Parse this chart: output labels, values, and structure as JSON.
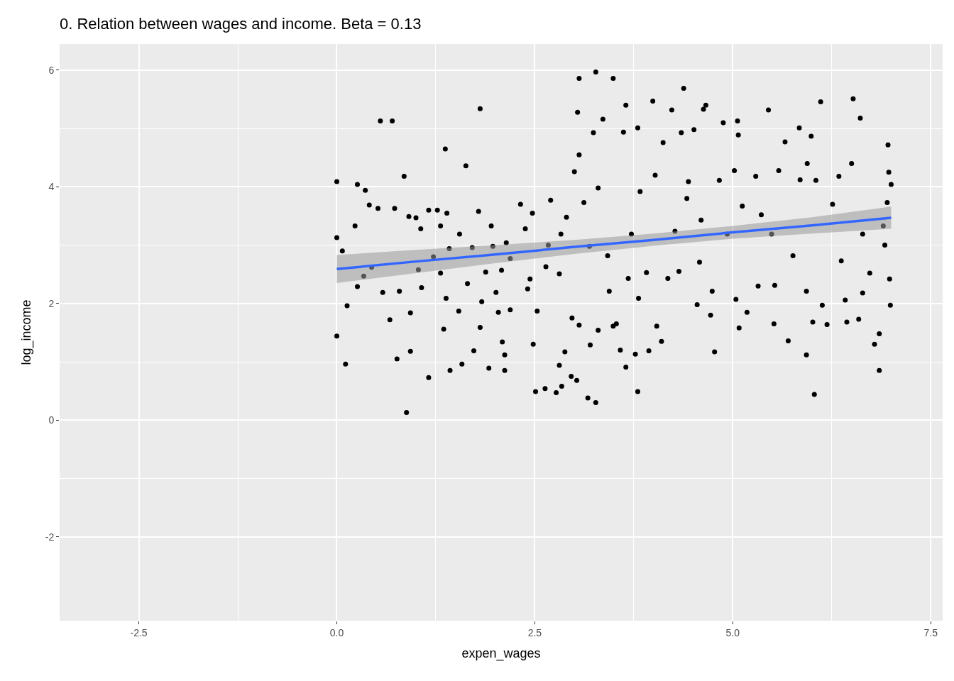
{
  "chart_data": {
    "type": "scatter",
    "title": "0. Relation between wages and income. Beta = 0.13",
    "xlabel": "expen_wages",
    "ylabel": "log_income",
    "xlim": [
      -3.5,
      7.65
    ],
    "xticks": [
      {
        "value": -2.5,
        "label": "-2.5"
      },
      {
        "value": 0,
        "label": "0.0"
      },
      {
        "value": 2.5,
        "label": "2.5"
      },
      {
        "value": 5,
        "label": "5.0"
      },
      {
        "value": 7.5,
        "label": "7.5"
      }
    ],
    "ylim": [
      -3.44,
      6.45
    ],
    "yticks": [
      -2,
      0,
      2,
      4,
      6
    ],
    "grid": true,
    "line_style": "solid",
    "series": [
      {
        "marker": "circle",
        "color": "#000000",
        "x": [
          0.0,
          0.0,
          0.0,
          0.07,
          0.11,
          0.13,
          0.26,
          0.23,
          0.26,
          0.36,
          0.34,
          0.41,
          0.44,
          0.55,
          0.52,
          0.58,
          0.7,
          0.67,
          0.73,
          0.76,
          0.79,
          0.85,
          0.88,
          0.91,
          0.93,
          0.93,
          1.0,
          1.03,
          1.06,
          1.07,
          1.16,
          1.16,
          1.22,
          1.27,
          1.31,
          1.31,
          1.35,
          1.37,
          1.38,
          1.39,
          1.43,
          1.42,
          1.54,
          1.55,
          1.58,
          1.63,
          1.65,
          1.71,
          1.73,
          1.79,
          1.81,
          1.81,
          1.83,
          1.88,
          1.92,
          1.95,
          1.97,
          2.01,
          2.04,
          2.08,
          2.09,
          2.12,
          2.12,
          2.14,
          2.19,
          2.19,
          2.32,
          2.38,
          2.41,
          2.44,
          2.47,
          2.48,
          2.51,
          2.53,
          2.63,
          2.64,
          2.67,
          2.7,
          2.77,
          2.81,
          2.81,
          2.84,
          2.88,
          2.9,
          2.96,
          2.97,
          3.03,
          3.0,
          3.04,
          3.06,
          3.06,
          3.06,
          3.12,
          3.17,
          3.2,
          3.19,
          3.24,
          3.27,
          3.27,
          3.3,
          3.3,
          3.36,
          3.42,
          3.44,
          3.49,
          3.49,
          3.53,
          3.58,
          3.62,
          3.65,
          3.65,
          3.68,
          3.77,
          3.8,
          3.8,
          3.81,
          3.83,
          3.91,
          3.94,
          3.99,
          4.02,
          4.04,
          4.1,
          4.12,
          4.18,
          4.23,
          4.27,
          4.32,
          4.35,
          4.38,
          4.42,
          4.44,
          4.51,
          4.55,
          4.58,
          4.63,
          4.66,
          4.72,
          4.74,
          4.77,
          4.83,
          4.88,
          4.93,
          5.02,
          5.06,
          5.07,
          5.04,
          5.08,
          5.12,
          5.18,
          5.29,
          5.32,
          5.36,
          5.45,
          5.52,
          5.53,
          5.58,
          5.66,
          5.7,
          5.76,
          5.84,
          5.85,
          5.93,
          5.94,
          5.99,
          6.01,
          6.03,
          6.05,
          6.11,
          6.13,
          6.19,
          6.26,
          6.34,
          6.37,
          6.42,
          6.44,
          6.5,
          6.52,
          6.59,
          6.61,
          6.64,
          6.73,
          6.79,
          6.85,
          6.85,
          6.9,
          6.92,
          6.96,
          6.97,
          6.98,
          6.99,
          7.0,
          6.95,
          5.93,
          6.64,
          5.49,
          4.6,
          3.72,
          2.83
        ],
        "values": [
          4.09,
          3.13,
          1.44,
          2.9,
          0.96,
          1.96,
          4.04,
          3.33,
          2.29,
          3.94,
          2.47,
          3.69,
          2.62,
          5.13,
          3.63,
          2.19,
          5.13,
          1.72,
          3.63,
          1.05,
          2.21,
          4.18,
          0.13,
          3.49,
          1.84,
          1.18,
          3.47,
          2.58,
          3.28,
          2.27,
          0.73,
          3.6,
          2.8,
          3.6,
          3.33,
          2.52,
          1.56,
          4.65,
          2.09,
          3.55,
          0.85,
          2.94,
          1.87,
          3.19,
          0.96,
          4.36,
          2.34,
          2.96,
          1.19,
          3.58,
          5.34,
          1.59,
          2.03,
          2.54,
          0.89,
          3.33,
          2.98,
          2.19,
          1.85,
          2.57,
          1.34,
          1.12,
          0.85,
          3.04,
          1.89,
          2.77,
          3.7,
          3.28,
          2.25,
          2.42,
          3.55,
          1.3,
          0.49,
          1.87,
          0.54,
          2.63,
          3.0,
          3.77,
          0.47,
          0.94,
          2.51,
          0.58,
          1.17,
          3.48,
          0.75,
          1.75,
          0.68,
          4.26,
          5.28,
          5.86,
          1.63,
          4.55,
          3.73,
          0.38,
          1.29,
          2.98,
          4.93,
          5.97,
          0.3,
          1.54,
          3.98,
          5.16,
          2.82,
          2.21,
          5.86,
          1.61,
          1.65,
          1.2,
          4.94,
          5.4,
          0.91,
          2.43,
          1.13,
          5.01,
          0.49,
          2.09,
          3.92,
          2.53,
          1.19,
          5.47,
          4.2,
          1.61,
          1.35,
          4.76,
          2.43,
          5.32,
          3.24,
          2.55,
          4.93,
          5.69,
          3.8,
          4.09,
          4.98,
          1.98,
          2.71,
          5.33,
          5.4,
          1.8,
          2.21,
          1.17,
          4.11,
          5.1,
          3.19,
          4.28,
          5.13,
          4.89,
          2.07,
          1.58,
          3.67,
          1.85,
          4.18,
          2.3,
          3.52,
          5.32,
          1.65,
          2.31,
          4.28,
          4.77,
          1.36,
          2.82,
          5.01,
          4.12,
          1.12,
          4.4,
          4.87,
          1.68,
          0.44,
          4.11,
          5.46,
          1.97,
          1.64,
          3.7,
          4.18,
          2.73,
          2.06,
          1.68,
          4.4,
          5.51,
          1.73,
          5.18,
          2.18,
          2.52,
          1.3,
          1.48,
          0.85,
          3.33,
          3.0,
          4.72,
          4.25,
          2.42,
          1.97,
          4.04,
          3.73,
          2.21,
          3.19,
          3.19,
          3.43,
          3.19,
          3.19
        ]
      },
      {
        "type": "line",
        "color": "#3366ff",
        "x": [
          0,
          1,
          2,
          3,
          4,
          5,
          6,
          7
        ],
        "values": [
          2.59,
          2.72,
          2.84,
          2.97,
          3.09,
          3.22,
          3.34,
          3.47
        ],
        "lower": [
          2.35,
          2.52,
          2.69,
          2.85,
          2.99,
          3.11,
          3.2,
          3.28
        ],
        "upper": [
          2.83,
          2.92,
          3.0,
          3.09,
          3.2,
          3.33,
          3.48,
          3.66
        ]
      }
    ]
  }
}
